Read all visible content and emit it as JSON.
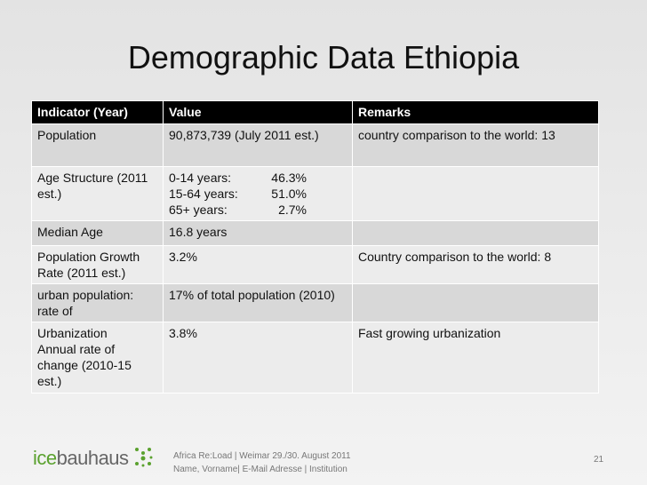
{
  "header": {
    "title": "Demographic Data Ethiopia"
  },
  "table": {
    "columns": [
      "Indicator (Year)",
      "Value",
      "Remarks"
    ],
    "rows": [
      [
        "Population",
        "90,873,739 (July 2011 est.)",
        "country comparison to the world: 13"
      ],
      [
        "Age Structure (2011 est.)",
        [
          [
            "0-14 years:",
            "46.3%"
          ],
          [
            "15-64 years:",
            "51.0%"
          ],
          [
            "65+ years:",
            "2.7%"
          ]
        ],
        null
      ],
      [
        "Median Age",
        "16.8 years",
        null
      ],
      [
        "Population Growth Rate (2011 est.)",
        "3.2%",
        "Country comparison to the world: 8"
      ],
      [
        "urban population: rate of",
        "17% of total population (2010)",
        null
      ],
      [
        [
          "Urbanization",
          "Annual rate of change (2010-15 est.)"
        ],
        "3.8%",
        "Fast growing urbanization"
      ]
    ]
  },
  "footer": {
    "logo": {
      "prefix": "ice",
      "suffix": "bauhaus"
    },
    "lines": [
      "Africa Re:Load | Weimar 29./30. August 2011",
      "Name, Vorname| E-Mail Adresse | Institution"
    ],
    "page_number": "21"
  }
}
